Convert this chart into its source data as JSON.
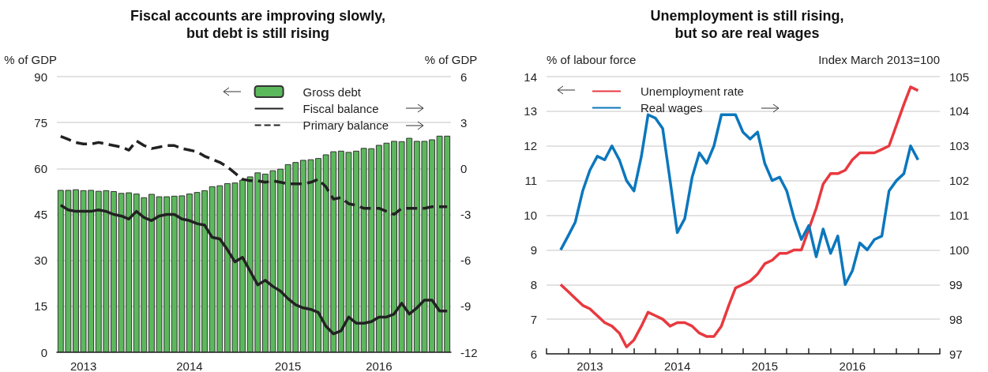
{
  "chart_data": [
    {
      "type": "bar",
      "title": "Fiscal accounts are improving slowly,\nbut debt is still rising",
      "ylabel": "% of GDP",
      "y2label": "% of GDP",
      "categories": [
        null,
        null,
        null,
        "2013",
        null,
        null,
        null,
        null,
        null,
        null,
        null,
        null,
        null,
        null,
        null,
        null,
        null,
        "2014",
        null,
        null,
        null,
        null,
        null,
        null,
        null,
        null,
        null,
        null,
        null,
        null,
        "2015",
        null,
        null,
        null,
        null,
        null,
        null,
        null,
        null,
        null,
        null,
        null,
        "2016",
        null,
        null,
        null,
        null,
        null,
        null,
        null,
        null,
        null
      ],
      "series": [
        {
          "name": "Gross debt",
          "type": "bar",
          "color": "#5cb85c",
          "values": [
            53.0,
            53.0,
            53.2,
            52.9,
            53.0,
            52.7,
            52.9,
            52.6,
            52.0,
            52.2,
            51.8,
            50.6,
            51.7,
            50.9,
            50.9,
            51.1,
            51.2,
            51.8,
            52.3,
            52.9,
            54.2,
            54.5,
            55.2,
            55.4,
            56.3,
            57.4,
            58.7,
            58.3,
            59.4,
            59.9,
            61.4,
            62.1,
            62.8,
            63.0,
            63.4,
            64.6,
            65.6,
            65.8,
            65.4,
            65.8,
            66.7,
            66.6,
            67.7,
            68.4,
            69.0,
            68.9,
            70.0,
            69.0,
            69.0,
            69.5,
            70.7,
            70.7
          ]
        },
        {
          "name": "Fiscal balance",
          "type": "line",
          "axis": "y2",
          "color": "#222222",
          "line_style": "solid",
          "values": [
            -2.4,
            -2.7,
            -2.8,
            -2.8,
            -2.8,
            -2.7,
            -2.8,
            -3.0,
            -3.1,
            -3.3,
            -2.8,
            -3.2,
            -3.4,
            -3.1,
            -3.0,
            -3.0,
            -3.3,
            -3.4,
            -3.6,
            -3.7,
            -4.5,
            -4.6,
            -5.3,
            -6.1,
            -5.8,
            -6.7,
            -7.6,
            -7.3,
            -7.7,
            -8.0,
            -8.5,
            -8.9,
            -9.1,
            -9.2,
            -9.4,
            -10.3,
            -10.8,
            -10.6,
            -9.7,
            -10.1,
            -10.1,
            -10.0,
            -9.7,
            -9.7,
            -9.5,
            -8.8,
            -9.5,
            -9.1,
            -8.6,
            -8.6,
            -9.3,
            -9.3
          ]
        },
        {
          "name": "Primary balance",
          "type": "line",
          "axis": "y2",
          "color": "#222222",
          "line_style": "dashed",
          "values": [
            2.1,
            1.9,
            1.7,
            1.6,
            1.6,
            1.7,
            1.6,
            1.5,
            1.4,
            1.2,
            1.8,
            1.5,
            1.3,
            1.4,
            1.5,
            1.5,
            1.3,
            1.2,
            1.1,
            0.8,
            0.6,
            0.4,
            0.1,
            -0.3,
            -0.7,
            -0.8,
            -0.8,
            -0.9,
            -0.8,
            -0.9,
            -1.0,
            -1.0,
            -1.0,
            -0.9,
            -0.7,
            -1.2,
            -2.0,
            -1.9,
            -2.3,
            -2.4,
            -2.6,
            -2.6,
            -2.6,
            -2.8,
            -3.0,
            -2.6,
            -2.6,
            -2.6,
            -2.6,
            -2.5,
            -2.5,
            -2.5
          ]
        }
      ],
      "ylim": [
        0,
        90
      ],
      "yticks": [
        0,
        15,
        30,
        45,
        60,
        75,
        90
      ],
      "y2lim": [
        -12,
        6
      ],
      "y2ticks": [
        -12,
        -9,
        -6,
        -3,
        0,
        3,
        6
      ],
      "grid": "y",
      "legend": "top right",
      "marker": "none"
    },
    {
      "type": "line",
      "title": "Unemployment is still rising,\nbut so are real wages",
      "ylabel": "% of labour force",
      "y2label": "Index March 2013=100",
      "x": [
        "2013-03",
        "2013-04",
        "2013-05",
        "2013-06",
        "2013-07",
        "2013-08",
        "2013-09",
        "2013-10",
        "2013-11",
        "2013-12",
        "2014-01",
        "2014-02",
        "2014-03",
        "2014-04",
        "2014-05",
        "2014-06",
        "2014-07",
        "2014-08",
        "2014-09",
        "2014-10",
        "2014-11",
        "2014-12",
        "2015-01",
        "2015-02",
        "2015-03",
        "2015-04",
        "2015-05",
        "2015-06",
        "2015-07",
        "2015-08",
        "2015-09",
        "2015-10",
        "2015-11",
        "2015-12",
        "2016-01",
        "2016-02",
        "2016-03",
        "2016-04",
        "2016-05",
        "2016-06",
        "2016-07",
        "2016-08",
        "2016-09",
        "2016-10",
        "2016-11",
        "2016-12",
        "2017-01",
        "2017-02",
        "2017-03",
        "2017-04"
      ],
      "series": [
        {
          "name": "Unemployment rate",
          "color": "#e8393f",
          "values": [
            8.0,
            7.8,
            7.6,
            7.4,
            7.3,
            7.1,
            6.9,
            6.8,
            6.6,
            6.2,
            6.4,
            6.8,
            7.2,
            7.1,
            7.0,
            6.8,
            6.9,
            6.9,
            6.8,
            6.6,
            6.5,
            6.5,
            6.8,
            7.4,
            7.9,
            8.0,
            8.1,
            8.3,
            8.6,
            8.7,
            8.9,
            8.9,
            9.0,
            9.0,
            9.6,
            10.2,
            10.9,
            11.2,
            11.2,
            11.3,
            11.6,
            11.8,
            11.8,
            11.8,
            11.9,
            12.0,
            12.6,
            13.2,
            13.7,
            13.6
          ]
        },
        {
          "name": "Real wages",
          "axis": "y2",
          "color": "#0b77bd",
          "values": [
            100.0,
            100.4,
            100.8,
            101.7,
            102.3,
            102.7,
            102.6,
            103.0,
            102.6,
            102.0,
            101.7,
            102.7,
            103.9,
            103.8,
            103.5,
            102.0,
            100.5,
            100.9,
            102.1,
            102.8,
            102.5,
            103.0,
            103.9,
            103.9,
            103.9,
            103.4,
            103.2,
            103.4,
            102.5,
            102.0,
            102.1,
            101.7,
            100.9,
            100.3,
            100.7,
            99.8,
            100.6,
            99.9,
            100.4,
            99.0,
            99.4,
            100.2,
            100.0,
            100.3,
            100.4,
            101.7,
            102.0,
            102.2,
            103.0,
            102.6
          ]
        }
      ],
      "xlim": [
        "2013-01",
        "2017-07"
      ],
      "xticks": [
        {
          "value": "2013-01",
          "label": null
        },
        {
          "value": "2013-04",
          "label": null
        },
        {
          "value": "2013-07",
          "label": "2013"
        },
        {
          "value": "2013-10",
          "label": null
        },
        {
          "value": "2014-01",
          "label": null
        },
        {
          "value": "2014-04",
          "label": null
        },
        {
          "value": "2014-07",
          "label": "2014"
        },
        {
          "value": "2014-10",
          "label": null
        },
        {
          "value": "2015-01",
          "label": null
        },
        {
          "value": "2015-04",
          "label": null
        },
        {
          "value": "2015-07",
          "label": "2015"
        },
        {
          "value": "2015-10",
          "label": null
        },
        {
          "value": "2016-01",
          "label": null
        },
        {
          "value": "2016-04",
          "label": null
        },
        {
          "value": "2016-07",
          "label": "2016"
        },
        {
          "value": "2016-10",
          "label": null
        },
        {
          "value": "2017-01",
          "label": null
        },
        {
          "value": "2017-04",
          "label": null
        },
        {
          "value": "2017-07",
          "label": null
        }
      ],
      "ylim": [
        6,
        14
      ],
      "yticks": [
        6,
        7,
        8,
        9,
        10,
        11,
        12,
        13,
        14
      ],
      "y2lim": [
        97,
        105
      ],
      "y2ticks": [
        97,
        98,
        99,
        100,
        101,
        102,
        103,
        104,
        105
      ],
      "grid": "y",
      "legend": "top left",
      "marker": "none",
      "line_style": "solid"
    }
  ]
}
